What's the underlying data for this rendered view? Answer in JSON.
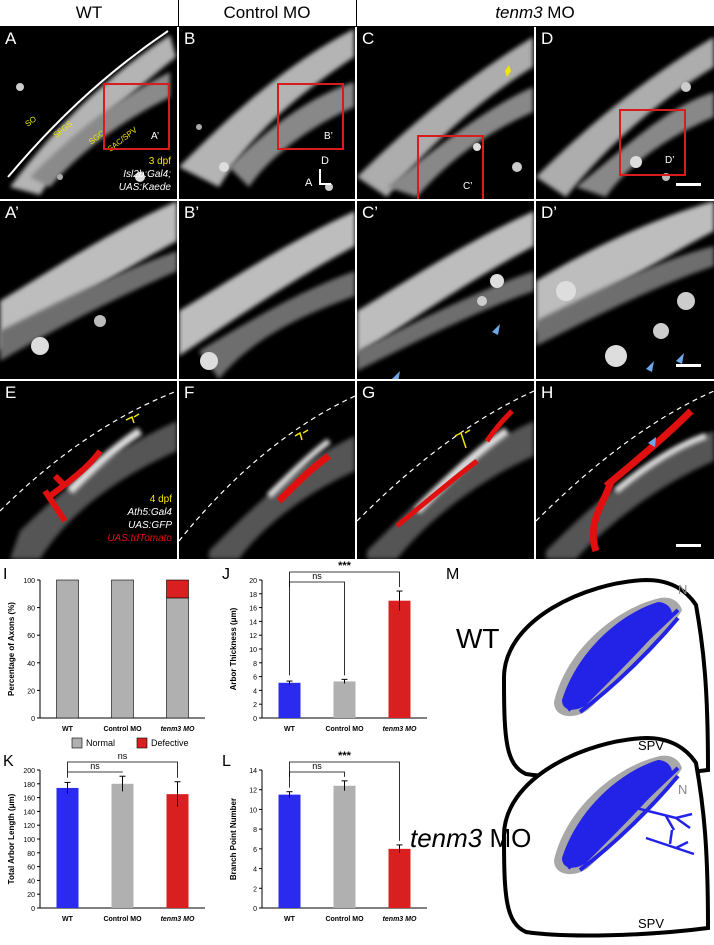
{
  "headers": {
    "wt": "WT",
    "control": "Control MO",
    "tenm3": "tenm3",
    "tenm3_suffix": " MO"
  },
  "panels": {
    "A": "A",
    "B": "B",
    "C": "C",
    "D": "D",
    "A2": "A’",
    "B2": "B’",
    "C2": "C’",
    "D2": "D’",
    "E": "E",
    "F": "F",
    "G": "G",
    "H": "H",
    "I": "I",
    "J": "J",
    "K": "K",
    "L": "L",
    "M": "M"
  },
  "row1": {
    "layers": [
      "SO",
      "SFGS",
      "SGC",
      "SAC/SPV"
    ],
    "age": "3 dpf",
    "line1": "Isl2b:Gal4;",
    "line2": "UAS:Kaede",
    "inset_labels": {
      "A": "A’",
      "B": "B’",
      "C": "C’",
      "D": "D’"
    },
    "axis_d": "D",
    "axis_a": "A"
  },
  "row3": {
    "age": "4 dpf",
    "line1": "Ath5:Gal4",
    "line2": "UAS:GFP",
    "line3": "UAS:tdTomato"
  },
  "charts": {
    "I": {
      "type": "bar",
      "ylabel": "Percentage of Axons (%)",
      "categories": [
        "WT",
        "Control MO",
        "tenm3 MO"
      ],
      "ylim": [
        0,
        100
      ],
      "yticks": [
        0,
        20,
        40,
        60,
        80,
        100
      ],
      "series": [
        {
          "name": "Normal",
          "color": "#b0b0b0",
          "values": [
            100,
            100,
            87
          ]
        },
        {
          "name": "Defective",
          "color": "#d91f1f",
          "values": [
            0,
            0,
            13
          ]
        }
      ],
      "legend": "bottom"
    },
    "J": {
      "type": "bar",
      "ylabel": "Arbor Thickness (μm)",
      "categories": [
        "WT",
        "Control MO",
        "tenm3 MO"
      ],
      "values": [
        5.1,
        5.3,
        17.0
      ],
      "errors": [
        0.25,
        0.3,
        1.4
      ],
      "colors": [
        "#2b2bf0",
        "#b0b0b0",
        "#d91f1f"
      ],
      "ylim": [
        0,
        20
      ],
      "yticks": [
        0,
        2,
        4,
        6,
        8,
        10,
        12,
        14,
        16,
        18,
        20
      ],
      "sig": [
        {
          "from": 0,
          "to": 1,
          "label": "ns"
        },
        {
          "from": 0,
          "to": 2,
          "label": "***"
        }
      ]
    },
    "K": {
      "type": "bar",
      "ylabel": "Total Arbor Length (μm)",
      "categories": [
        "WT",
        "Control MO",
        "tenm3 MO"
      ],
      "values": [
        174,
        180,
        165
      ],
      "errors": [
        8,
        11,
        18
      ],
      "colors": [
        "#2b2bf0",
        "#b0b0b0",
        "#d91f1f"
      ],
      "ylim": [
        0,
        200
      ],
      "yticks": [
        0,
        20,
        40,
        60,
        80,
        100,
        120,
        140,
        160,
        180,
        200
      ],
      "sig": [
        {
          "from": 0,
          "to": 1,
          "label": "ns"
        },
        {
          "from": 0,
          "to": 2,
          "label": "ns"
        }
      ]
    },
    "L": {
      "type": "bar",
      "ylabel": "Branch Point Number",
      "categories": [
        "WT",
        "Control MO",
        "tenm3 MO"
      ],
      "values": [
        11.5,
        12.4,
        6.0
      ],
      "errors": [
        0.3,
        0.5,
        0.4
      ],
      "colors": [
        "#2b2bf0",
        "#b0b0b0",
        "#d91f1f"
      ],
      "ylim": [
        0,
        14
      ],
      "yticks": [
        0,
        2,
        4,
        6,
        8,
        10,
        12,
        14
      ],
      "sig": [
        {
          "from": 0,
          "to": 1,
          "label": "ns"
        },
        {
          "from": 0,
          "to": 2,
          "label": "***"
        }
      ]
    }
  },
  "schematic": {
    "wt": "WT",
    "tenm3": "tenm3",
    "mo": " MO",
    "n": "N",
    "spv": "SPV",
    "colors": {
      "blue": "#2323e8",
      "gray": "#a8a8a8"
    }
  }
}
